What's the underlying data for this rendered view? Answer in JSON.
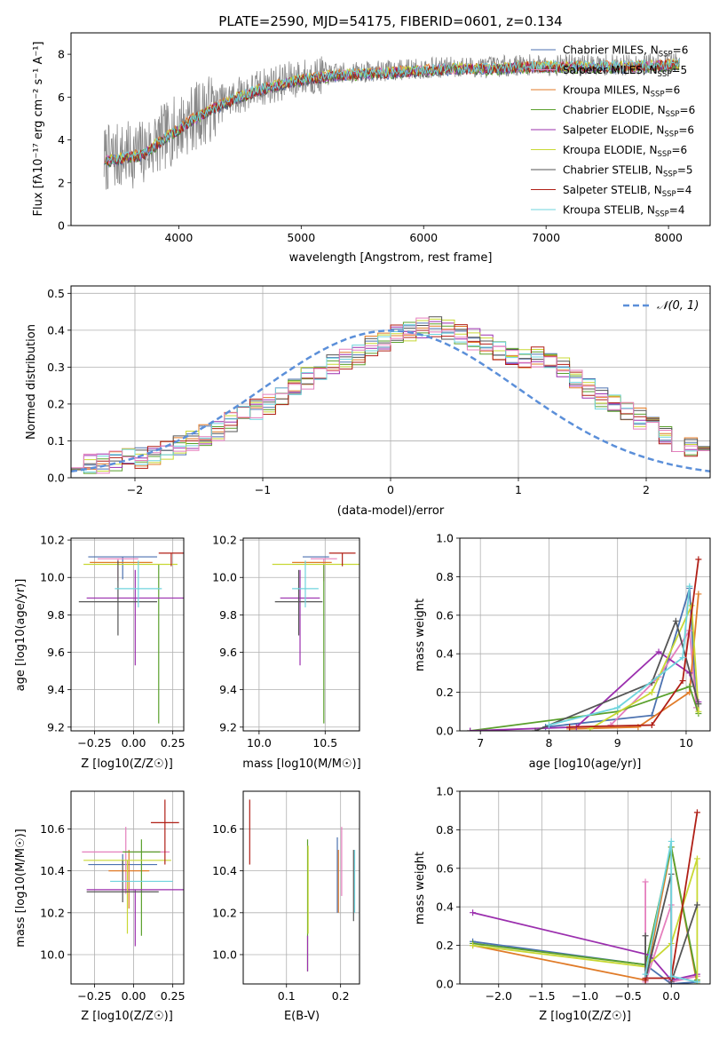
{
  "figure": {
    "title": "PLATE=2590, MJD=54175, FIBERID=0601, z=0.134"
  },
  "colors": [
    "#4c72b0",
    "#e07b28",
    "#5aa02c",
    "#9b2fae",
    "#c8d834",
    "#555555",
    "#b01f16",
    "#6fd4dd",
    "#e57fbd"
  ],
  "chart_data": [
    {
      "id": "spectrum",
      "type": "line",
      "xlabel": "wavelength [Angstrom, rest frame]",
      "ylabel": "Flux [fλ10⁻¹⁷ erg cm⁻² s⁻¹ A⁻¹]",
      "xlim": [
        3120,
        8340
      ],
      "ylim": [
        0,
        9
      ],
      "xticks": [
        4000,
        5000,
        6000,
        7000,
        8000
      ],
      "yticks": [
        0,
        2,
        4,
        6,
        8
      ],
      "legend_position": "top-right",
      "continuum_anchors": {
        "x": [
          3380,
          3500,
          3700,
          3900,
          4100,
          4300,
          4500,
          4700,
          5000,
          5300,
          5600,
          5900,
          6200,
          6500,
          6800,
          7100,
          7400,
          7700,
          8000,
          8100
        ],
        "y": [
          3.1,
          3.2,
          3.4,
          4.2,
          5.0,
          5.6,
          6.1,
          6.5,
          6.9,
          7.1,
          7.2,
          7.3,
          7.4,
          7.4,
          7.5,
          7.5,
          7.5,
          7.5,
          7.6,
          7.6
        ]
      },
      "series": [
        {
          "name": "Chabrier MILES, N_SSP=6",
          "label_main": "Chabrier MILES, N",
          "label_sub": "SSP",
          "label_end": "=6",
          "color": "#4c72b0"
        },
        {
          "name": "Salpeter MILES, N_SSP=5",
          "label_main": "Salpeter MILES, N",
          "label_sub": "SSP",
          "label_end": "=5",
          "color": "#e57fbd"
        },
        {
          "name": "Kroupa MILES, N_SSP=6",
          "label_main": "Kroupa MILES, N",
          "label_sub": "SSP",
          "label_end": "=6",
          "color": "#e07b28"
        },
        {
          "name": "Chabrier ELODIE, N_SSP=6",
          "label_main": "Chabrier ELODIE, N",
          "label_sub": "SSP",
          "label_end": "=6",
          "color": "#5aa02c"
        },
        {
          "name": "Salpeter ELODIE, N_SSP=6",
          "label_main": "Salpeter ELODIE, N",
          "label_sub": "SSP",
          "label_end": "=6",
          "color": "#9b2fae"
        },
        {
          "name": "Kroupa ELODIE, N_SSP=6",
          "label_main": "Kroupa ELODIE, N",
          "label_sub": "SSP",
          "label_end": "=6",
          "color": "#c8d834"
        },
        {
          "name": "Chabrier STELIB, N_SSP=5",
          "label_main": "Chabrier STELIB, N",
          "label_sub": "SSP",
          "label_end": "=5",
          "color": "#555555"
        },
        {
          "name": "Salpeter STELIB, N_SSP=4",
          "label_main": "Salpeter STELIB, N",
          "label_sub": "SSP",
          "label_end": "=4",
          "color": "#b01f16"
        },
        {
          "name": "Kroupa STELIB, N_SSP=4",
          "label_main": "Kroupa STELIB, N",
          "label_sub": "SSP",
          "label_end": "=4",
          "color": "#6fd4dd"
        }
      ]
    },
    {
      "id": "residuals",
      "type": "line",
      "xlabel": "(data-model)/error",
      "ylabel": "Normed distribution",
      "xlim": [
        -2.5,
        2.5
      ],
      "ylim": [
        0,
        0.52
      ],
      "xticks": [
        -2,
        -1,
        0,
        1,
        2
      ],
      "yticks": [
        0.0,
        0.1,
        0.2,
        0.3,
        0.4,
        0.5
      ],
      "legend": "𝒩(0, 1)",
      "legend_position": "top-right",
      "bin_edges_from": -2.5,
      "bin_width": 0.1,
      "histogram_mean": [
        0.03,
        0.035,
        0.04,
        0.045,
        0.05,
        0.055,
        0.065,
        0.075,
        0.085,
        0.1,
        0.115,
        0.13,
        0.15,
        0.165,
        0.185,
        0.2,
        0.22,
        0.245,
        0.27,
        0.29,
        0.305,
        0.32,
        0.335,
        0.355,
        0.37,
        0.385,
        0.395,
        0.405,
        0.41,
        0.405,
        0.39,
        0.375,
        0.36,
        0.345,
        0.33,
        0.325,
        0.33,
        0.32,
        0.3,
        0.27,
        0.24,
        0.215,
        0.2,
        0.185,
        0.16,
        0.14,
        0.12,
        0.1,
        0.085,
        0.07
      ],
      "gaussian": {
        "mean": 0,
        "sigma": 1
      }
    },
    {
      "id": "age_vs_Z",
      "type": "scatter",
      "xlabel": "Z [log10(Z/Z☉)]",
      "ylabel": "age  [log10(age/yr)]",
      "xlim": [
        -0.4,
        0.32
      ],
      "ylim": [
        9.18,
        10.21
      ],
      "xticks": [
        -0.25,
        0.0,
        0.25
      ],
      "xticklabels": [
        "−0.25",
        "0.00",
        "0.25"
      ],
      "yticks": [
        9.2,
        9.4,
        9.6,
        9.8,
        10.0,
        10.2
      ],
      "points": [
        {
          "x": -0.07,
          "y": 10.11,
          "xerr": 0.22,
          "yerr_lo": 0.12,
          "yerr_hi": 0.0,
          "color": "#4c72b0"
        },
        {
          "x": -0.1,
          "y": 10.1,
          "xerr": 0.13,
          "yerr_lo": 0.12,
          "yerr_hi": 0.0,
          "color": "#e57fbd"
        },
        {
          "x": -0.08,
          "y": 10.08,
          "xerr": 0.2,
          "yerr_lo": 0.0,
          "yerr_hi": 0.0,
          "color": "#e07b28"
        },
        {
          "x": 0.16,
          "y": 10.07,
          "xerr": 0.0,
          "yerr_lo": 0.85,
          "yerr_hi": 0.0,
          "color": "#5aa02c"
        },
        {
          "x": 0.01,
          "y": 9.89,
          "xerr": 0.31,
          "yerr_lo": 0.36,
          "yerr_hi": 0.15,
          "color": "#9b2fae"
        },
        {
          "x": -0.02,
          "y": 10.07,
          "xerr": 0.3,
          "yerr_lo": 0.0,
          "yerr_hi": 0.0,
          "color": "#c8d834"
        },
        {
          "x": -0.1,
          "y": 9.87,
          "xerr": 0.25,
          "yerr_lo": 0.18,
          "yerr_hi": 0.22,
          "color": "#555555"
        },
        {
          "x": 0.24,
          "y": 10.13,
          "xerr": 0.08,
          "yerr_lo": 0.07,
          "yerr_hi": 0.0,
          "color": "#b01f16"
        },
        {
          "x": 0.03,
          "y": 9.94,
          "xerr": 0.15,
          "yerr_lo": 0.1,
          "yerr_hi": 0.15,
          "color": "#6fd4dd"
        }
      ]
    },
    {
      "id": "age_vs_mass",
      "type": "scatter",
      "xlabel": "mass [log10(M/M☉)]",
      "ylabel": "",
      "xlim": [
        9.88,
        10.76
      ],
      "ylim": [
        9.18,
        10.21
      ],
      "xticks": [
        10.0,
        10.5
      ],
      "xticklabels": [
        "10.0",
        "10.5"
      ],
      "yticks": [
        9.2,
        9.4,
        9.6,
        9.8,
        10.0,
        10.2
      ],
      "points": [
        {
          "x": 10.43,
          "y": 10.11,
          "xerr": 0.1,
          "yerr_lo": 0.0,
          "yerr_hi": 0.0,
          "color": "#4c72b0"
        },
        {
          "x": 10.49,
          "y": 10.1,
          "xerr": 0.1,
          "yerr_lo": 0.12,
          "yerr_hi": 0.0,
          "color": "#e57fbd"
        },
        {
          "x": 10.4,
          "y": 10.08,
          "xerr": 0.15,
          "yerr_lo": 0.0,
          "yerr_hi": 0.0,
          "color": "#e07b28"
        },
        {
          "x": 10.49,
          "y": 10.07,
          "xerr": 0.0,
          "yerr_lo": 0.85,
          "yerr_hi": 0.0,
          "color": "#5aa02c"
        },
        {
          "x": 10.31,
          "y": 9.89,
          "xerr": 0.15,
          "yerr_lo": 0.36,
          "yerr_hi": 0.15,
          "color": "#9b2fae"
        },
        {
          "x": 10.45,
          "y": 10.07,
          "xerr": 0.35,
          "yerr_lo": 0.0,
          "yerr_hi": 0.0,
          "color": "#c8d834"
        },
        {
          "x": 10.3,
          "y": 9.87,
          "xerr": 0.18,
          "yerr_lo": 0.18,
          "yerr_hi": 0.17,
          "color": "#555555"
        },
        {
          "x": 10.63,
          "y": 10.13,
          "xerr": 0.1,
          "yerr_lo": 0.07,
          "yerr_hi": 0.0,
          "color": "#b01f16"
        },
        {
          "x": 10.35,
          "y": 9.94,
          "xerr": 0.1,
          "yerr_lo": 0.1,
          "yerr_hi": 0.15,
          "color": "#6fd4dd"
        }
      ]
    },
    {
      "id": "massweight_vs_age",
      "type": "line",
      "xlabel": "age  [log10(age/yr)]",
      "ylabel": "mass weight",
      "xlim": [
        6.7,
        10.35
      ],
      "ylim": [
        0,
        1.0
      ],
      "xticks": [
        7,
        8,
        9,
        10
      ],
      "yticks": [
        0.0,
        0.2,
        0.4,
        0.6,
        0.8,
        1.0
      ],
      "series": [
        {
          "color": "#4c72b0",
          "x": [
            7.95,
            9.5,
            10.05,
            10.15
          ],
          "y": [
            0.02,
            0.08,
            0.74,
            0.12
          ]
        },
        {
          "color": "#e57fbd",
          "x": [
            8.9,
            9.6,
            10.05,
            10.15
          ],
          "y": [
            0.03,
            0.28,
            0.52,
            0.12
          ]
        },
        {
          "color": "#e07b28",
          "x": [
            8.3,
            9.3,
            10.05,
            10.18
          ],
          "y": [
            0.01,
            0.02,
            0.2,
            0.71
          ]
        },
        {
          "color": "#5aa02c",
          "x": [
            6.85,
            9.0,
            10.05,
            10.18
          ],
          "y": [
            0.0,
            0.1,
            0.23,
            0.09
          ]
        },
        {
          "color": "#9b2fae",
          "x": [
            6.85,
            8.4,
            9.6,
            10.05,
            10.18
          ],
          "y": [
            0.0,
            0.02,
            0.41,
            0.3,
            0.15
          ]
        },
        {
          "color": "#c8d834",
          "x": [
            8.6,
            9.5,
            10.08,
            10.18
          ],
          "y": [
            0.01,
            0.2,
            0.65,
            0.1
          ]
        },
        {
          "color": "#555555",
          "x": [
            7.8,
            9.5,
            9.85,
            10.18
          ],
          "y": [
            0.0,
            0.25,
            0.57,
            0.14
          ]
        },
        {
          "color": "#b01f16",
          "x": [
            8.3,
            9.5,
            9.95,
            10.18
          ],
          "y": [
            0.02,
            0.03,
            0.26,
            0.89
          ]
        },
        {
          "color": "#6fd4dd",
          "x": [
            8.0,
            9.0,
            9.95,
            10.05
          ],
          "y": [
            0.03,
            0.12,
            0.38,
            0.75
          ]
        }
      ]
    },
    {
      "id": "mass_vs_Z",
      "type": "scatter",
      "xlabel": "Z [log10(Z/Z☉)]",
      "ylabel": "mass [log10(M/M☉)]",
      "xlim": [
        -0.4,
        0.32
      ],
      "ylim": [
        9.86,
        10.78
      ],
      "xticks": [
        -0.25,
        0.0,
        0.25
      ],
      "xticklabels": [
        "−0.25",
        "0.00",
        "0.25"
      ],
      "yticks": [
        10.0,
        10.2,
        10.4,
        10.6
      ],
      "points": [
        {
          "x": -0.07,
          "y": 10.43,
          "xerr": 0.22,
          "yerr_lo": 0.0,
          "yerr_hi": 0.05,
          "color": "#4c72b0"
        },
        {
          "x": -0.05,
          "y": 10.49,
          "xerr": 0.28,
          "yerr_lo": 0.2,
          "yerr_hi": 0.12,
          "color": "#e57fbd"
        },
        {
          "x": -0.03,
          "y": 10.4,
          "xerr": 0.13,
          "yerr_lo": 0.18,
          "yerr_hi": 0.1,
          "color": "#e07b28"
        },
        {
          "x": 0.05,
          "y": 10.49,
          "xerr": 0.12,
          "yerr_lo": 0.4,
          "yerr_hi": 0.06,
          "color": "#5aa02c"
        },
        {
          "x": 0.01,
          "y": 10.31,
          "xerr": 0.31,
          "yerr_lo": 0.27,
          "yerr_hi": 0.0,
          "color": "#9b2fae"
        },
        {
          "x": -0.04,
          "y": 10.45,
          "xerr": 0.28,
          "yerr_lo": 0.35,
          "yerr_hi": 0.0,
          "color": "#c8d834"
        },
        {
          "x": -0.07,
          "y": 10.3,
          "xerr": 0.23,
          "yerr_lo": 0.05,
          "yerr_hi": 0.15,
          "color": "#555555"
        },
        {
          "x": 0.2,
          "y": 10.63,
          "xerr": 0.09,
          "yerr_lo": 0.2,
          "yerr_hi": 0.11,
          "color": "#b01f16"
        },
        {
          "x": 0.05,
          "y": 10.35,
          "xerr": 0.2,
          "yerr_lo": 0.0,
          "yerr_hi": 0.0,
          "color": "#6fd4dd"
        }
      ]
    },
    {
      "id": "mass_vs_ebv",
      "type": "scatter",
      "xlabel": "E(B-V)",
      "ylabel": "",
      "xlim": [
        0.02,
        0.235
      ],
      "ylim": [
        9.86,
        10.78
      ],
      "xticks": [
        0.1,
        0.2
      ],
      "xticklabels": [
        "0.1",
        "0.2"
      ],
      "yticks": [
        10.0,
        10.2,
        10.4,
        10.6
      ],
      "points": [
        {
          "x": 0.032,
          "y": 10.58,
          "yerr_lo": 0.15,
          "yerr_hi": 0.16,
          "color": "#b01f16"
        },
        {
          "x": 0.139,
          "y": 10.22,
          "yerr_lo": 0.3,
          "yerr_hi": 0.33,
          "color": "#5aa02c"
        },
        {
          "x": 0.14,
          "y": 10.3,
          "yerr_lo": 0.2,
          "yerr_hi": 0.22,
          "color": "#c8d834"
        },
        {
          "x": 0.139,
          "y": 10.0,
          "yerr_lo": 0.08,
          "yerr_hi": 0.09,
          "color": "#9b2fae"
        },
        {
          "x": 0.194,
          "y": 10.38,
          "yerr_lo": 0.18,
          "yerr_hi": 0.18,
          "color": "#4c72b0"
        },
        {
          "x": 0.196,
          "y": 10.3,
          "yerr_lo": 0.1,
          "yerr_hi": 0.2,
          "color": "#e07b28"
        },
        {
          "x": 0.202,
          "y": 10.4,
          "yerr_lo": 0.12,
          "yerr_hi": 0.21,
          "color": "#e57fbd"
        },
        {
          "x": 0.224,
          "y": 10.35,
          "yerr_lo": 0.19,
          "yerr_hi": 0.15,
          "color": "#555555"
        },
        {
          "x": 0.226,
          "y": 10.35,
          "yerr_lo": 0.15,
          "yerr_hi": 0.15,
          "color": "#6fd4dd"
        }
      ]
    },
    {
      "id": "massweight_vs_Z",
      "type": "line",
      "xlabel": "Z [log10(Z/Z☉)]",
      "ylabel": "mass weight",
      "xlim": [
        -2.45,
        0.45
      ],
      "ylim": [
        0,
        1.0
      ],
      "xticks": [
        -2.0,
        -1.5,
        -1.0,
        -0.5,
        0.0
      ],
      "xticklabels": [
        "−2.0",
        "−1.5",
        "−1.0",
        "−0.5",
        "0.0"
      ],
      "yticks": [
        0.0,
        0.2,
        0.4,
        0.6,
        0.8,
        1.0
      ],
      "series": [
        {
          "color": "#4c72b0",
          "x": [
            -2.3,
            -0.3,
            0.0,
            0.3
          ],
          "y": [
            0.22,
            0.1,
            0.0,
            0.01
          ]
        },
        {
          "color": "#e57fbd",
          "x": [
            -0.3,
            -0.3,
            0.0,
            0.0,
            0.3
          ],
          "y": [
            0.53,
            0.01,
            0.41,
            0.01,
            0.04
          ]
        },
        {
          "color": "#e07b28",
          "x": [
            -2.3,
            -0.3,
            0.0,
            0.3
          ],
          "y": [
            0.2,
            0.02,
            0.71,
            0.0
          ]
        },
        {
          "color": "#5aa02c",
          "x": [
            -2.3,
            -0.3,
            0.0,
            0.3
          ],
          "y": [
            0.21,
            0.1,
            0.71,
            0.02
          ]
        },
        {
          "color": "#9b2fae",
          "x": [
            -2.3,
            -0.25,
            0.0,
            0.3
          ],
          "y": [
            0.37,
            0.15,
            0.02,
            0.05
          ]
        },
        {
          "color": "#c8d834",
          "x": [
            -2.3,
            -0.3,
            0.0,
            0.3,
            0.3
          ],
          "y": [
            0.2,
            0.09,
            0.21,
            0.65,
            0.0
          ]
        },
        {
          "color": "#555555",
          "x": [
            -0.3,
            -0.3,
            0.0,
            0.0,
            0.3
          ],
          "y": [
            0.25,
            0.02,
            0.57,
            0.01,
            0.41
          ]
        },
        {
          "color": "#b01f16",
          "x": [
            -0.3,
            -0.3,
            0.0,
            0.0,
            0.3
          ],
          "y": [
            0.02,
            0.03,
            0.03,
            0.03,
            0.89
          ]
        },
        {
          "color": "#6fd4dd",
          "x": [
            -0.3,
            0.0,
            0.0,
            0.3
          ],
          "y": [
            0.05,
            0.74,
            0.04,
            0.01
          ]
        }
      ]
    }
  ]
}
